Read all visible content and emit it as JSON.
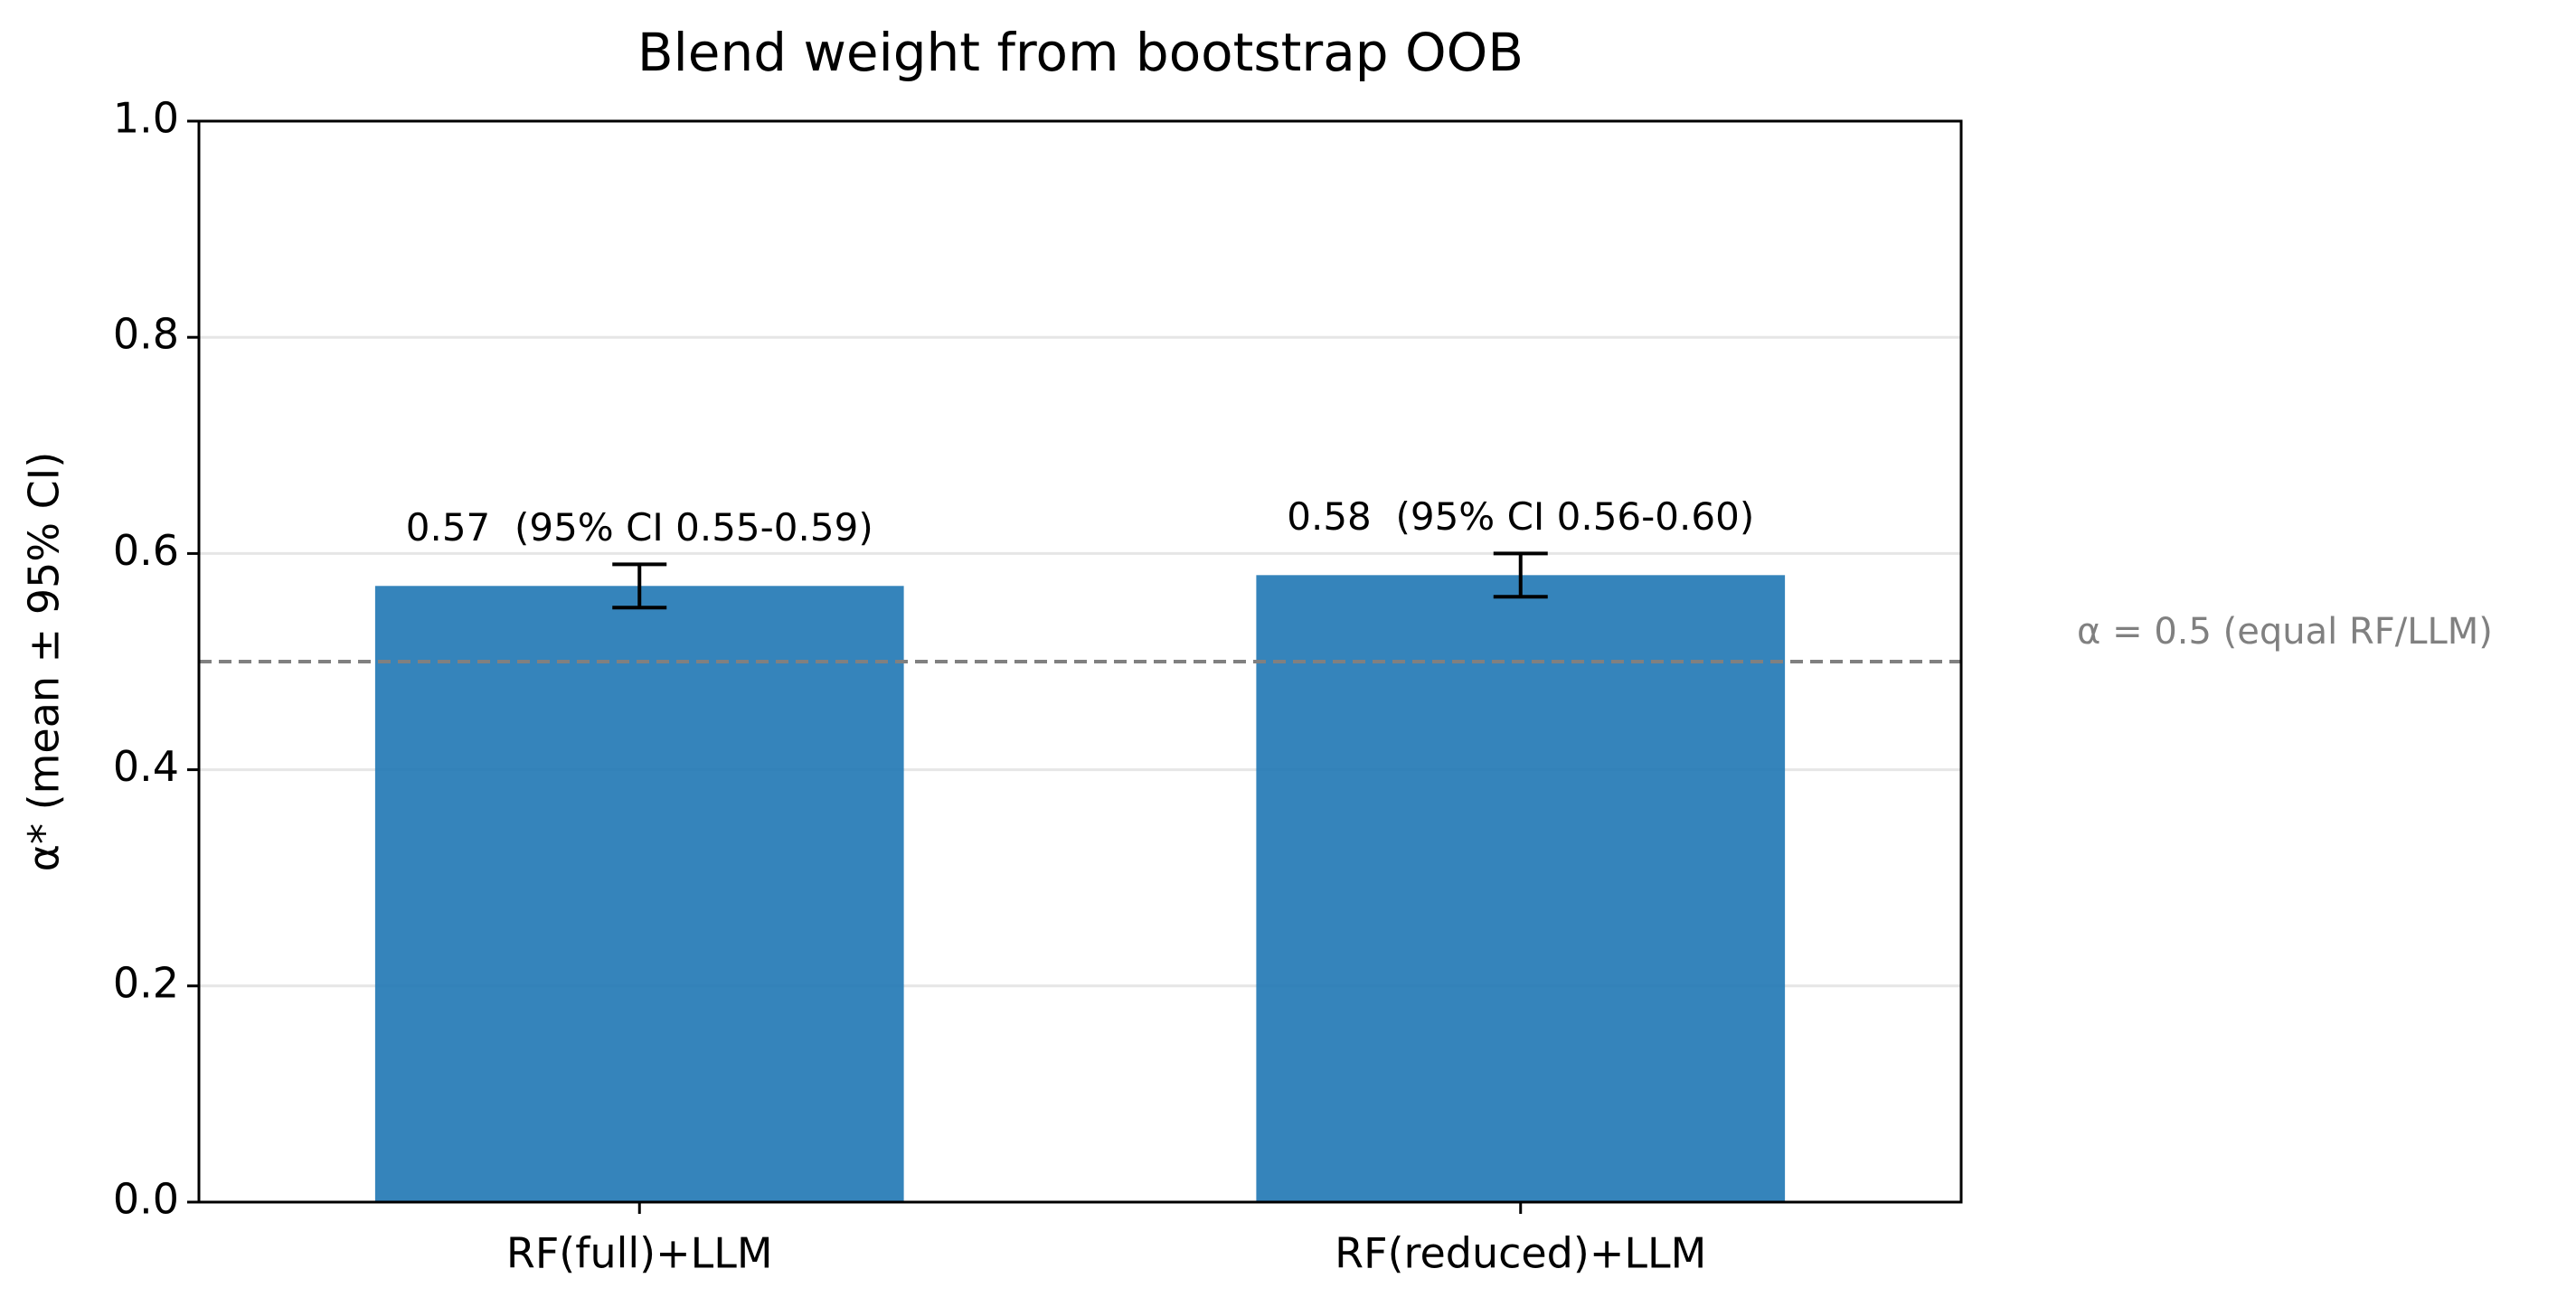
{
  "chart_data": {
    "type": "bar",
    "title": "Blend weight from bootstrap OOB",
    "ylabel": "α* (mean ± 95% CI)",
    "categories": [
      "RF(full)+LLM",
      "RF(reduced)+LLM"
    ],
    "values": [
      0.57,
      0.58
    ],
    "ci_low": [
      0.55,
      0.56
    ],
    "ci_high": [
      0.59,
      0.6
    ],
    "value_labels": [
      "0.57  (95% CI 0.55-0.59)",
      "0.58  (95% CI 0.56-0.60)"
    ],
    "color": "#1f77b4",
    "ylim": [
      0,
      1
    ],
    "yticks": [
      {
        "value": 0,
        "label": "0.0"
      },
      0.2,
      0.4,
      0.6,
      0.8,
      {
        "value": 1,
        "label": "1.0"
      }
    ],
    "grid": true,
    "reference_line": {
      "value": 0.5,
      "label": "α = 0.5 (equal RF/LLM)",
      "color": "#808080"
    }
  }
}
